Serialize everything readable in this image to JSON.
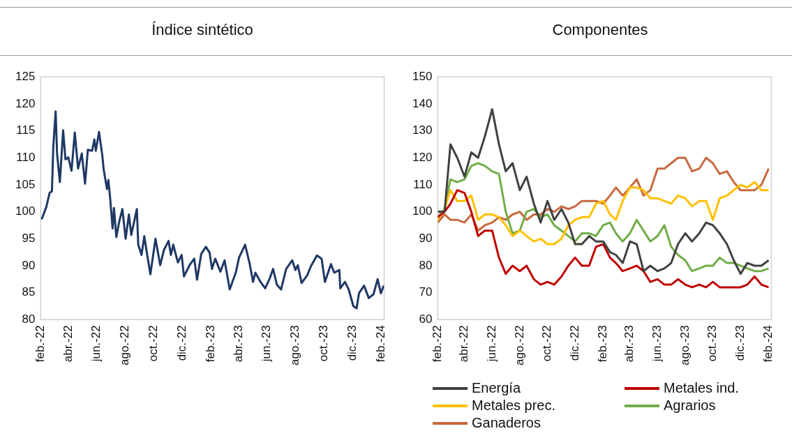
{
  "chart_data": [
    {
      "type": "line",
      "title": "Índice sintético",
      "x": [
        "2022-02-03",
        "2022-02-13",
        "2022-02-20",
        "2022-02-25",
        "2022-02-28",
        "2022-03-05",
        "2022-03-08",
        "2022-03-14",
        "2022-03-21",
        "2022-03-26",
        "2022-04-01",
        "2022-04-08",
        "2022-04-15",
        "2022-04-22",
        "2022-04-30",
        "2022-05-07",
        "2022-05-13",
        "2022-05-22",
        "2022-05-27",
        "2022-05-30",
        "2022-06-06",
        "2022-06-13",
        "2022-06-16",
        "2022-06-23",
        "2022-06-26",
        "2022-06-30",
        "2022-07-05",
        "2022-07-08",
        "2022-07-13",
        "2022-07-19",
        "2022-07-26",
        "2022-08-02",
        "2022-08-09",
        "2022-08-14",
        "2022-08-26",
        "2022-08-29",
        "2022-09-05",
        "2022-09-11",
        "2022-09-15",
        "2022-09-24",
        "2022-10-05",
        "2022-10-15",
        "2022-10-23",
        "2022-11-02",
        "2022-11-07",
        "2022-11-12",
        "2022-11-22",
        "2022-11-30",
        "2022-12-05",
        "2022-12-17",
        "2022-12-27",
        "2023-01-02",
        "2023-01-11",
        "2023-01-21",
        "2023-01-29",
        "2023-02-03",
        "2023-02-10",
        "2023-02-21",
        "2023-03-02",
        "2023-03-13",
        "2023-03-26",
        "2023-04-02",
        "2023-04-15",
        "2023-04-25",
        "2023-05-02",
        "2023-05-07",
        "2023-05-18",
        "2023-05-28",
        "2023-06-07",
        "2023-06-14",
        "2023-06-22",
        "2023-07-01",
        "2023-07-12",
        "2023-07-25",
        "2023-08-01",
        "2023-08-06",
        "2023-08-14",
        "2023-08-26",
        "2023-09-03",
        "2023-09-16",
        "2023-09-26",
        "2023-10-03",
        "2023-10-16",
        "2023-10-23",
        "2023-11-03",
        "2023-11-05",
        "2023-11-15",
        "2023-11-23",
        "2023-12-03",
        "2023-12-10",
        "2023-12-15",
        "2023-12-26",
        "2024-01-05",
        "2024-01-15",
        "2024-01-24",
        "2024-01-31",
        "2024-02-06"
      ],
      "series": [
        {
          "color": "#1f3864",
          "values": [
            98.6,
            100.9,
            103.5,
            103.8,
            112.2,
            118.6,
            110.8,
            105.5,
            115.1,
            109.7,
            110.1,
            107.6,
            114.7,
            108,
            110.8,
            105.2,
            111.5,
            111.3,
            113.4,
            111.3,
            114.8,
            110.4,
            107.8,
            104.2,
            105.9,
            102.3,
            96.9,
            100.7,
            95.3,
            98.1,
            100.5,
            95,
            99.5,
            95.7,
            100.5,
            93.9,
            92,
            95.5,
            93.2,
            88.4,
            95,
            90.1,
            92.9,
            94.6,
            92,
            93.9,
            90.6,
            92,
            88,
            90.1,
            91.3,
            87.4,
            92.2,
            93.5,
            92.4,
            89.4,
            91.3,
            88.9,
            91,
            85.6,
            88.7,
            91.5,
            93.9,
            90.3,
            87,
            88.7,
            87,
            85.8,
            87.7,
            89.4,
            86.5,
            85.6,
            89.4,
            91,
            89.2,
            90.1,
            86.8,
            88.2,
            89.9,
            91.9,
            91.3,
            87,
            90.3,
            88.7,
            89.2,
            85.8,
            87,
            85.6,
            82.5,
            82.1,
            84.9,
            86.3,
            84,
            84.7,
            87.5,
            84.9,
            86.3
          ]
        }
      ],
      "xlim": [
        "2022-02-01",
        "2024-02-07"
      ],
      "xticks": [
        {
          "value": "2022-02-01",
          "label": "feb.-22"
        },
        {
          "value": "2022-04-01",
          "label": "abr.-22"
        },
        {
          "value": "2022-06-01",
          "label": "jun.-22"
        },
        {
          "value": "2022-08-01",
          "label": "ago.-22"
        },
        {
          "value": "2022-10-01",
          "label": "oct.-22"
        },
        {
          "value": "2022-12-01",
          "label": "dic.-22"
        },
        {
          "value": "2023-02-01",
          "label": "feb.-23"
        },
        {
          "value": "2023-04-01",
          "label": "abr.-23"
        },
        {
          "value": "2023-06-01",
          "label": "jun.-23"
        },
        {
          "value": "2023-08-01",
          "label": "ago.-23"
        },
        {
          "value": "2023-10-01",
          "label": "oct.-23"
        },
        {
          "value": "2023-12-01",
          "label": "dic.-23"
        },
        {
          "value": "2024-02-01",
          "label": "feb.-24"
        }
      ],
      "ylim": [
        80,
        125
      ],
      "yticks": [
        80,
        85,
        90,
        95,
        100,
        105,
        110,
        115,
        120,
        125
      ],
      "legend": false
    },
    {
      "type": "line",
      "title": "Componentes",
      "x": [
        "2022-02-01",
        "2022-02-16",
        "2022-03-01",
        "2022-03-16",
        "2022-04-01",
        "2022-04-16",
        "2022-05-01",
        "2022-05-16",
        "2022-06-01",
        "2022-06-16",
        "2022-07-01",
        "2022-07-16",
        "2022-08-01",
        "2022-08-16",
        "2022-09-01",
        "2022-09-16",
        "2022-10-01",
        "2022-10-16",
        "2022-11-01",
        "2022-11-16",
        "2022-12-01",
        "2022-12-16",
        "2023-01-01",
        "2023-01-16",
        "2023-02-01",
        "2023-02-16",
        "2023-03-01",
        "2023-03-16",
        "2023-04-01",
        "2023-04-16",
        "2023-05-01",
        "2023-05-16",
        "2023-06-01",
        "2023-06-16",
        "2023-07-01",
        "2023-07-16",
        "2023-08-01",
        "2023-08-16",
        "2023-09-01",
        "2023-09-16",
        "2023-10-01",
        "2023-10-16",
        "2023-11-01",
        "2023-11-16",
        "2023-12-01",
        "2023-12-16",
        "2024-01-01",
        "2024-01-16",
        "2024-02-01"
      ],
      "series": [
        {
          "name": "Energía",
          "color": "#404040",
          "values": [
            100,
            100,
            125,
            120,
            113,
            122,
            120,
            128,
            138,
            125,
            115,
            118,
            108,
            113,
            103,
            96,
            104,
            97,
            101,
            96,
            88,
            88,
            91,
            89,
            89,
            85,
            84,
            81,
            89,
            88,
            78,
            80,
            78,
            79,
            81,
            88,
            92,
            89,
            92,
            96,
            95,
            92,
            88,
            82,
            77,
            81,
            80,
            80,
            82
          ]
        },
        {
          "name": "Metales ind.",
          "color": "#c00000",
          "values": [
            98,
            100,
            103,
            108,
            107,
            100,
            91,
            93,
            93,
            83,
            77,
            80,
            78,
            80,
            75,
            73,
            74,
            73,
            76,
            80,
            83,
            80,
            80,
            87,
            88,
            83,
            81,
            78,
            79,
            80,
            78,
            74,
            75,
            73,
            73,
            75,
            73,
            72,
            73,
            72,
            74,
            72,
            72,
            72,
            72,
            73,
            76,
            73,
            72
          ]
        },
        {
          "name": "Metales prec.",
          "color": "#ffc000",
          "values": [
            97,
            101,
            108,
            104,
            104,
            106,
            97,
            99,
            99,
            98,
            95,
            91,
            93,
            91,
            89,
            90,
            88,
            88,
            90,
            95,
            97,
            98,
            98,
            103,
            104,
            99,
            97,
            104,
            109,
            109,
            108,
            105,
            105,
            104,
            103,
            106,
            105,
            102,
            104,
            104,
            97,
            105,
            106,
            108,
            110,
            109,
            111,
            108,
            108
          ]
        },
        {
          "name": "Agrarios",
          "color": "#70ad47",
          "values": [
            98,
            101,
            112,
            111,
            112,
            117,
            118,
            117,
            115,
            114,
            100,
            92,
            93,
            100,
            101,
            98,
            99,
            95,
            93,
            91,
            89,
            92,
            92,
            91,
            95,
            96,
            92,
            89,
            92,
            97,
            93,
            89,
            91,
            95,
            87,
            84,
            82,
            78,
            79,
            80,
            80,
            83,
            81,
            81,
            80,
            79,
            78,
            78,
            79
          ]
        },
        {
          "name": "Ganaderos",
          "color": "#c8693f",
          "values": [
            96,
            99,
            97,
            97,
            96,
            99,
            93,
            95,
            96,
            98,
            97,
            99,
            100,
            97,
            99,
            99,
            101,
            100,
            102,
            101,
            102,
            104,
            104,
            104,
            103,
            106,
            109,
            106,
            109,
            112,
            106,
            108,
            116,
            116,
            118,
            120,
            120,
            115,
            116,
            120,
            118,
            114,
            115,
            111,
            108,
            108,
            108,
            110,
            116
          ]
        }
      ],
      "xlim": [
        "2022-02-01",
        "2024-02-07"
      ],
      "xticks": [
        {
          "value": "2022-02-01",
          "label": "feb.-22"
        },
        {
          "value": "2022-04-01",
          "label": "abr.-22"
        },
        {
          "value": "2022-06-01",
          "label": "jun.-22"
        },
        {
          "value": "2022-08-01",
          "label": "ago.-22"
        },
        {
          "value": "2022-10-01",
          "label": "oct.-22"
        },
        {
          "value": "2022-12-01",
          "label": "dic.-22"
        },
        {
          "value": "2023-02-01",
          "label": "feb.-23"
        },
        {
          "value": "2023-04-01",
          "label": "abr.-23"
        },
        {
          "value": "2023-06-01",
          "label": "jun.-23"
        },
        {
          "value": "2023-08-01",
          "label": "ago.-23"
        },
        {
          "value": "2023-10-01",
          "label": "oct.-23"
        },
        {
          "value": "2023-12-01",
          "label": "dic.-23"
        },
        {
          "value": "2024-02-01",
          "label": "feb.-24"
        }
      ],
      "ylim": [
        60,
        150
      ],
      "yticks": [
        60,
        70,
        80,
        90,
        100,
        110,
        120,
        130,
        140,
        150
      ],
      "legend": "bottom"
    }
  ]
}
